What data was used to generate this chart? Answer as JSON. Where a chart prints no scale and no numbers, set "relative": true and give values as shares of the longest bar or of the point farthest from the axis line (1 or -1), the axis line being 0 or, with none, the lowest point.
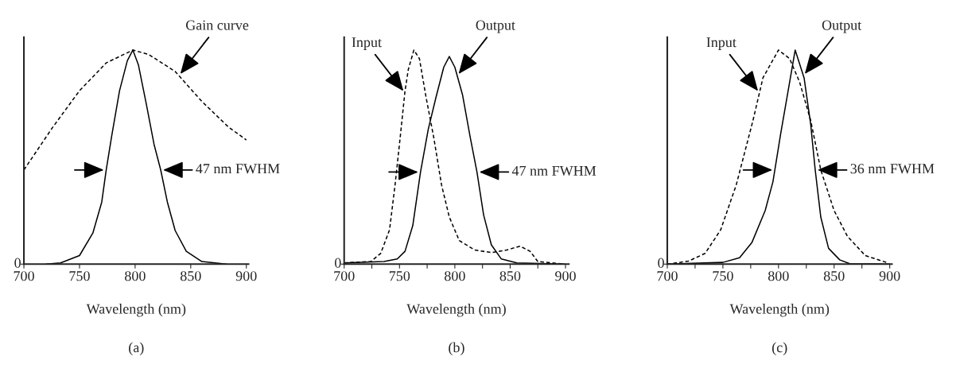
{
  "chart_data": [
    {
      "type": "line",
      "title": "(a)",
      "xlabel": "Wavelength (nm)",
      "relative": true,
      "xlim": [
        700,
        902
      ],
      "xticks": [
        700,
        750,
        800,
        850,
        900
      ],
      "grid": false,
      "annotations": [
        {
          "text": "47 nm FWHM",
          "x": 823,
          "y": 0.44
        },
        "0"
      ],
      "legend": false,
      "series": [
        {
          "color": "#000000",
          "line_style": "solid",
          "x": [
            720,
            733,
            750,
            762,
            770,
            774,
            779,
            786,
            793,
            798,
            803,
            810,
            817,
            823,
            829,
            836,
            846,
            860,
            882
          ],
          "values": [
            0,
            0.006,
            0.04,
            0.145,
            0.29,
            0.44,
            0.6,
            0.81,
            0.95,
            1.0,
            0.93,
            0.75,
            0.56,
            0.44,
            0.29,
            0.157,
            0.06,
            0.012,
            0
          ]
        },
        {
          "name": "Gain curve",
          "color": "#000000",
          "line_style": "dashed",
          "x": [
            700,
            726,
            750,
            774,
            798,
            812,
            836,
            860,
            884,
            900
          ],
          "values": [
            0.44,
            0.64,
            0.81,
            0.94,
            1.0,
            0.98,
            0.9,
            0.76,
            0.64,
            0.58
          ]
        }
      ]
    },
    {
      "type": "line",
      "title": "(b)",
      "xlabel": "Wavelength (nm)",
      "relative": true,
      "xlim": [
        700,
        903
      ],
      "xticks": [
        700,
        {
          "value": 725,
          "label": null
        },
        750,
        {
          "value": 775,
          "label": null
        },
        800,
        {
          "value": 825,
          "label": null
        },
        850,
        {
          "value": 875,
          "label": null
        },
        900
      ],
      "grid": false,
      "annotations": [
        {
          "text": "47 nm FWHM",
          "x": 820,
          "y": 0.43
        },
        "0"
      ],
      "legend": false,
      "series": [
        {
          "name": "Input",
          "color": "#000000",
          "line_style": "dashed",
          "x": [
            700,
            724,
            733,
            741,
            746,
            751,
            755,
            758,
            763,
            768,
            774,
            781,
            788,
            795,
            804,
            818,
            833,
            847,
            859,
            868,
            875,
            899
          ],
          "values": [
            0.006,
            0.012,
            0.05,
            0.16,
            0.37,
            0.61,
            0.81,
            0.91,
            1.0,
            0.96,
            0.78,
            0.59,
            0.37,
            0.22,
            0.11,
            0.066,
            0.054,
            0.066,
            0.084,
            0.06,
            0.012,
            0
          ]
        },
        {
          "name": "Output",
          "color": "#000000",
          "line_style": "solid",
          "x": [
            700,
            736,
            748,
            755,
            762,
            769,
            776,
            783,
            790,
            795,
            800,
            807,
            814,
            820,
            826,
            833,
            842,
            856,
            899
          ],
          "values": [
            0.006,
            0.012,
            0.024,
            0.06,
            0.18,
            0.43,
            0.63,
            0.78,
            0.92,
            0.97,
            0.92,
            0.79,
            0.59,
            0.43,
            0.23,
            0.09,
            0.024,
            0.006,
            0
          ]
        }
      ]
    },
    {
      "type": "line",
      "title": "(c)",
      "xlabel": "Wavelength (nm)",
      "relative": true,
      "xlim": [
        700,
        902
      ],
      "xticks": [
        700,
        {
          "value": 725,
          "label": null
        },
        750,
        {
          "value": 775,
          "label": null
        },
        800,
        {
          "value": 825,
          "label": null
        },
        850,
        {
          "value": 875,
          "label": null
        },
        900
      ],
      "grid": false,
      "annotations": [
        {
          "text": "36 nm FWHM",
          "x": 833,
          "y": 0.44
        },
        "0"
      ],
      "legend": false,
      "series": [
        {
          "name": "Input",
          "color": "#000000",
          "line_style": "dashed",
          "x": [
            700,
            719,
            734,
            748,
            762,
            777,
            786,
            800,
            810,
            819,
            829,
            838,
            850,
            862,
            878,
            897
          ],
          "values": [
            0,
            0.014,
            0.05,
            0.16,
            0.37,
            0.67,
            0.87,
            1.0,
            0.96,
            0.85,
            0.67,
            0.44,
            0.25,
            0.13,
            0.04,
            0.008
          ]
        },
        {
          "name": "Output",
          "color": "#000000",
          "line_style": "solid",
          "x": [
            700,
            750,
            765,
            776,
            788,
            795,
            802,
            810,
            815,
            823,
            829,
            833,
            838,
            845,
            855,
            864,
            900
          ],
          "values": [
            0,
            0.008,
            0.03,
            0.1,
            0.25,
            0.385,
            0.61,
            0.85,
            1.0,
            0.87,
            0.65,
            0.44,
            0.22,
            0.074,
            0.02,
            0.002,
            0
          ]
        }
      ]
    }
  ]
}
